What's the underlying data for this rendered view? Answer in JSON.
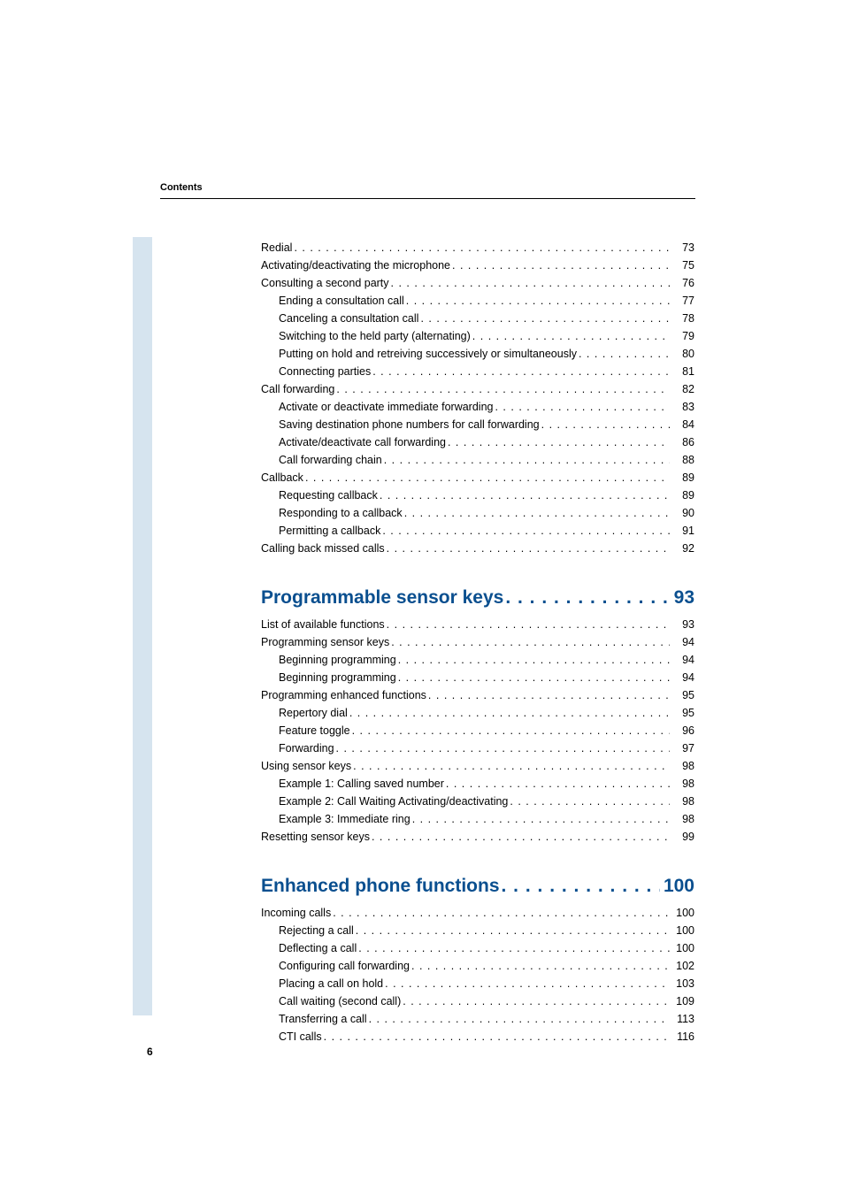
{
  "header": {
    "label": "Contents"
  },
  "pageNumber": "6",
  "colors": {
    "stripe": "#d6e4ef",
    "headingBlue": "#0a4f8f",
    "text": "#000000",
    "background": "#ffffff"
  },
  "sections": [
    {
      "type": "continuation",
      "entries": [
        {
          "label": "Redial",
          "page": "73",
          "indent": 0
        },
        {
          "label": "Activating/deactivating the microphone ",
          "page": "75",
          "indent": 0
        },
        {
          "label": "Consulting a second party ",
          "page": "76",
          "indent": 0
        },
        {
          "label": "Ending a consultation call",
          "page": "77",
          "indent": 1
        },
        {
          "label": "Canceling a consultation call ",
          "page": "78",
          "indent": 1
        },
        {
          "label": "Switching to the held party (alternating) ",
          "page": "79",
          "indent": 1
        },
        {
          "label": "Putting on hold and retreiving successively or simultaneously ",
          "page": "80",
          "indent": 1
        },
        {
          "label": "Connecting parties",
          "page": "81",
          "indent": 1
        },
        {
          "label": "Call forwarding",
          "page": "82",
          "indent": 0
        },
        {
          "label": "Activate or deactivate immediate forwarding ",
          "page": "83",
          "indent": 1
        },
        {
          "label": "Saving destination phone numbers for call forwarding ",
          "page": "84",
          "indent": 1
        },
        {
          "label": "Activate/deactivate call forwarding ",
          "page": "86",
          "indent": 1
        },
        {
          "label": "Call forwarding chain ",
          "page": "88",
          "indent": 1
        },
        {
          "label": "Callback ",
          "page": "89",
          "indent": 0
        },
        {
          "label": "Requesting callback ",
          "page": "89",
          "indent": 1
        },
        {
          "label": "Responding to a callback ",
          "page": "90",
          "indent": 1
        },
        {
          "label": "Permitting a callback ",
          "page": "91",
          "indent": 1
        },
        {
          "label": "Calling back missed calls",
          "page": "92",
          "indent": 0
        }
      ]
    },
    {
      "type": "section",
      "title": "Programmable sensor keys",
      "titlePage": "93",
      "entries": [
        {
          "label": "List of available functions ",
          "page": "93",
          "indent": 0
        },
        {
          "label": "Programming sensor keys",
          "page": "94",
          "indent": 0
        },
        {
          "label": "Beginning programming ",
          "page": "94",
          "indent": 1
        },
        {
          "label": "Beginning programming ",
          "page": "94",
          "indent": 1
        },
        {
          "label": "Programming enhanced functions",
          "page": "95",
          "indent": 0
        },
        {
          "label": "Repertory dial",
          "page": "95",
          "indent": 1
        },
        {
          "label": "Feature toggle ",
          "page": "96",
          "indent": 1
        },
        {
          "label": "Forwarding",
          "page": "97",
          "indent": 1
        },
        {
          "label": "Using sensor keys ",
          "page": "98",
          "indent": 0
        },
        {
          "label": "Example 1: Calling saved number ",
          "page": "98",
          "indent": 1
        },
        {
          "label": "Example 2: Call Waiting Activating/deactivating ",
          "page": "98",
          "indent": 1
        },
        {
          "label": "Example 3: Immediate ring ",
          "page": "98",
          "indent": 1
        },
        {
          "label": "Resetting sensor keys",
          "page": "99",
          "indent": 0
        }
      ]
    },
    {
      "type": "section",
      "title": "Enhanced phone functions",
      "titlePage": "100",
      "entries": [
        {
          "label": "Incoming calls ",
          "page": "100",
          "indent": 0
        },
        {
          "label": "Rejecting a call",
          "page": "100",
          "indent": 1
        },
        {
          "label": "Deflecting a call ",
          "page": "100",
          "indent": 1
        },
        {
          "label": "Configuring call forwarding ",
          "page": "102",
          "indent": 1
        },
        {
          "label": "Placing a call on hold ",
          "page": "103",
          "indent": 1
        },
        {
          "label": "Call waiting (second call) ",
          "page": "109",
          "indent": 1
        },
        {
          "label": "Transferring a call",
          "page": "113",
          "indent": 1
        },
        {
          "label": "CTI calls ",
          "page": "116",
          "indent": 1
        }
      ]
    }
  ]
}
